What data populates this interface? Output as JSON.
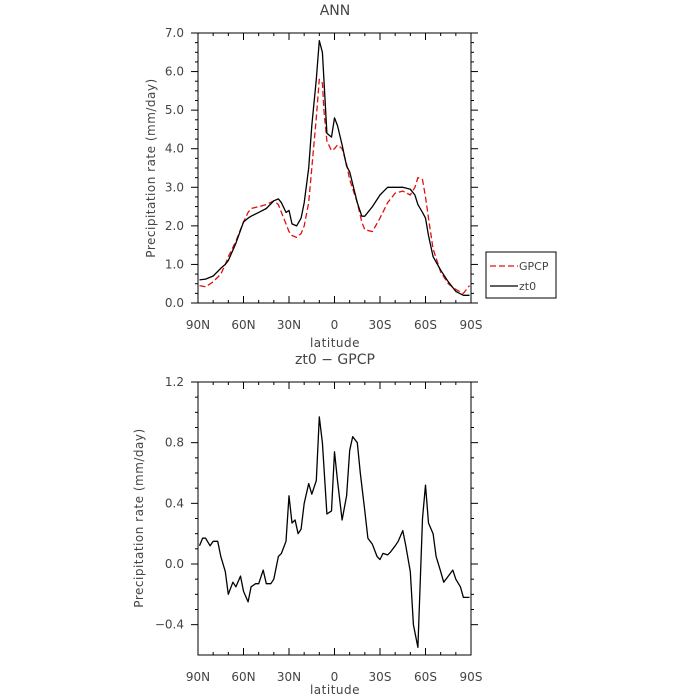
{
  "chart_data": [
    {
      "type": "line",
      "title": "ANN",
      "xlabel": "latitude",
      "ylabel": "Precipitation rate (mm/day)",
      "xlim": [
        90,
        -90
      ],
      "ylim": [
        0,
        7
      ],
      "x_ticks": [
        90,
        60,
        30,
        0,
        -30,
        -60,
        -90
      ],
      "x_tick_labels": [
        "90N",
        "60N",
        "30N",
        "0",
        "30S",
        "60S",
        "90S"
      ],
      "y_ticks": [
        0,
        1,
        2,
        3,
        4,
        5,
        6,
        7
      ],
      "y_tick_labels": [
        "0.0",
        "1.0",
        "2.0",
        "3.0",
        "4.0",
        "5.0",
        "6.0",
        "7.0"
      ],
      "legend_position": "right",
      "series": [
        {
          "name": "GPCP",
          "color": "#e01010",
          "dash": true,
          "x": [
            89,
            85,
            80,
            75,
            72,
            70,
            65,
            60,
            57,
            55,
            50,
            45,
            40,
            37,
            35,
            32,
            30,
            28,
            25,
            22,
            20,
            17,
            15,
            12,
            10,
            8,
            7,
            5,
            2,
            0,
            -2,
            -5,
            -8,
            -10,
            -15,
            -18,
            -20,
            -25,
            -30,
            -35,
            -40,
            -45,
            -50,
            -53,
            -55,
            -58,
            -60,
            -62,
            -65,
            -70,
            -75,
            -80,
            -85,
            -89
          ],
          "y": [
            0.45,
            0.42,
            0.55,
            0.75,
            1.0,
            1.2,
            1.6,
            2.1,
            2.35,
            2.45,
            2.5,
            2.55,
            2.65,
            2.55,
            2.35,
            2.05,
            1.85,
            1.75,
            1.7,
            1.8,
            2.0,
            2.6,
            3.5,
            4.8,
            5.8,
            5.7,
            5.0,
            4.2,
            3.95,
            4.0,
            4.1,
            4.0,
            3.6,
            3.2,
            2.6,
            2.1,
            1.9,
            1.85,
            2.2,
            2.6,
            2.85,
            2.9,
            2.8,
            3.0,
            3.25,
            3.2,
            2.75,
            2.2,
            1.4,
            0.8,
            0.5,
            0.35,
            0.25,
            0.45
          ]
        },
        {
          "name": "zt0",
          "color": "#000000",
          "dash": false,
          "x": [
            89,
            85,
            80,
            75,
            72,
            70,
            65,
            60,
            57,
            55,
            50,
            45,
            40,
            37,
            35,
            32,
            30,
            28,
            25,
            22,
            20,
            17,
            15,
            12,
            10,
            8,
            7,
            5,
            2,
            0,
            -2,
            -5,
            -8,
            -10,
            -15,
            -18,
            -20,
            -25,
            -30,
            -35,
            -40,
            -45,
            -50,
            -53,
            -55,
            -58,
            -60,
            -62,
            -65,
            -70,
            -75,
            -80,
            -85,
            -89
          ],
          "y": [
            0.6,
            0.62,
            0.7,
            0.9,
            1.0,
            1.1,
            1.55,
            2.1,
            2.2,
            2.25,
            2.35,
            2.45,
            2.65,
            2.7,
            2.6,
            2.35,
            2.4,
            2.05,
            2.0,
            2.2,
            2.6,
            3.5,
            4.6,
            5.8,
            6.8,
            6.5,
            5.8,
            4.4,
            4.3,
            4.8,
            4.6,
            4.1,
            3.55,
            3.4,
            2.6,
            2.25,
            2.25,
            2.5,
            2.8,
            3.0,
            3.0,
            3.0,
            2.95,
            2.8,
            2.55,
            2.35,
            2.2,
            1.75,
            1.2,
            0.85,
            0.55,
            0.3,
            0.2,
            0.2
          ]
        }
      ]
    },
    {
      "type": "line",
      "title": "zt0 − GPCP",
      "xlabel": "latitude",
      "ylabel": "Precipitation rate (mm/day)",
      "xlim": [
        90,
        -90
      ],
      "ylim": [
        -0.6,
        1.2
      ],
      "x_ticks": [
        90,
        60,
        30,
        0,
        -30,
        -60,
        -90
      ],
      "x_tick_labels": [
        "90N",
        "60N",
        "30N",
        "0",
        "30S",
        "60S",
        "90S"
      ],
      "y_ticks": [
        -0.4,
        0,
        0.4,
        0.8,
        1.2
      ],
      "y_tick_labels": [
        "−0.4",
        "0.0",
        "0.4",
        "0.8",
        "1.2"
      ],
      "series": [
        {
          "color": "#000000",
          "x": [
            89,
            87,
            85,
            82,
            80,
            77,
            75,
            72,
            70,
            67,
            65,
            62,
            60,
            57,
            55,
            52,
            50,
            47,
            45,
            42,
            40,
            37,
            35,
            32,
            30,
            28,
            26,
            24,
            22,
            20,
            17,
            15,
            12,
            10,
            8,
            5,
            2,
            0,
            -2,
            -5,
            -8,
            -10,
            -12,
            -15,
            -17,
            -20,
            -22,
            -25,
            -28,
            -30,
            -32,
            -35,
            -37,
            -40,
            -42,
            -45,
            -47,
            -50,
            -52,
            -55,
            -58,
            -60,
            -62,
            -65,
            -67,
            -70,
            -72,
            -75,
            -78,
            -80,
            -83,
            -85,
            -87,
            -89
          ],
          "y": [
            0.12,
            0.17,
            0.17,
            0.12,
            0.15,
            0.15,
            0.05,
            -0.05,
            -0.2,
            -0.12,
            -0.15,
            -0.08,
            -0.18,
            -0.25,
            -0.15,
            -0.13,
            -0.13,
            -0.04,
            -0.13,
            -0.13,
            -0.1,
            0.05,
            0.07,
            0.15,
            0.45,
            0.27,
            0.29,
            0.2,
            0.23,
            0.4,
            0.53,
            0.46,
            0.55,
            0.97,
            0.8,
            0.33,
            0.35,
            0.74,
            0.55,
            0.29,
            0.45,
            0.75,
            0.84,
            0.8,
            0.6,
            0.35,
            0.17,
            0.13,
            0.05,
            0.03,
            0.07,
            0.06,
            0.08,
            0.12,
            0.15,
            0.22,
            0.12,
            -0.05,
            -0.4,
            -0.55,
            0.3,
            0.52,
            0.27,
            0.2,
            0.05,
            -0.05,
            -0.12,
            -0.08,
            -0.04,
            -0.1,
            -0.15,
            -0.22,
            -0.22,
            -0.22
          ]
        }
      ]
    }
  ]
}
